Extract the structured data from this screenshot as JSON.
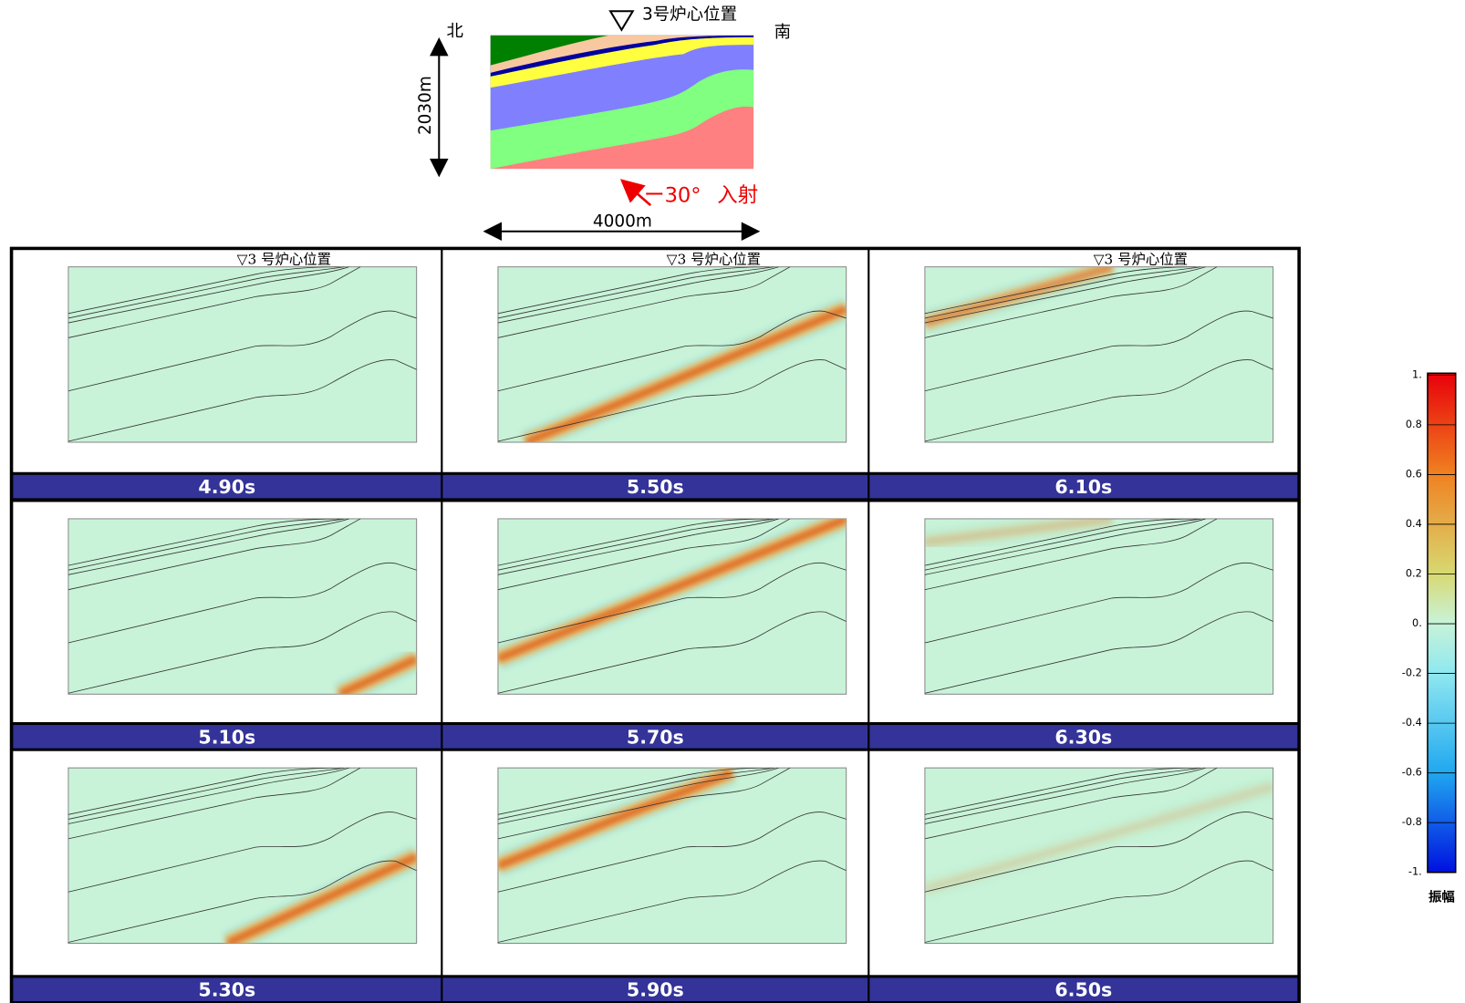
{
  "schematic": {
    "site_label": "3号炉心位置",
    "north": "北",
    "south": "南",
    "depth": "2030m",
    "width": "4000m",
    "incidence_angle": "ー30°",
    "incidence_label": "入射"
  },
  "site_marker": "▽3 号炉心位置",
  "panels": [
    {
      "time": "4.90s"
    },
    {
      "time": "5.50s"
    },
    {
      "time": "6.10s"
    },
    {
      "time": "5.10s"
    },
    {
      "time": "5.70s"
    },
    {
      "time": "6.30s"
    },
    {
      "time": "5.30s"
    },
    {
      "time": "5.90s"
    },
    {
      "time": "6.50s"
    }
  ],
  "colorbar": {
    "ticks": [
      {
        "value": 1,
        "label": "1."
      },
      0.8,
      0.6,
      0.4,
      0.2,
      {
        "value": 0,
        "label": "0."
      },
      -0.2,
      -0.4,
      -0.6,
      -0.8,
      {
        "value": -1,
        "label": "-1."
      }
    ],
    "label": "振幅"
  }
}
